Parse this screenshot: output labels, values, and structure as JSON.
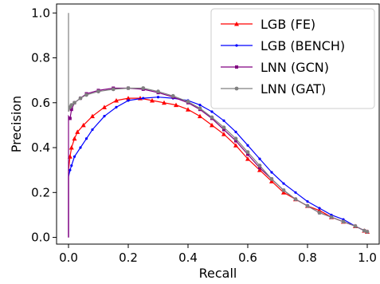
{
  "chart_data": {
    "type": "line",
    "title": "",
    "xlabel": "Recall",
    "ylabel": "Precision",
    "xlim": [
      -0.04,
      1.04
    ],
    "ylim": [
      -0.03,
      1.04
    ],
    "xticks": [
      0.0,
      0.2,
      0.4,
      0.6,
      0.8,
      1.0
    ],
    "yticks": [
      0.0,
      0.2,
      0.4,
      0.6,
      0.8,
      1.0
    ],
    "xtick_labels": [
      "0.0",
      "0.2",
      "0.4",
      "0.6",
      "0.8",
      "1.0"
    ],
    "ytick_labels": [
      "0.0",
      "0.2",
      "0.4",
      "0.6",
      "0.8",
      "1.0"
    ],
    "grid": false,
    "legend_position": "top-right",
    "series": [
      {
        "name": "LGB (FE)",
        "color": "#ff0000",
        "marker": "triangle",
        "x": [
          0.0,
          0.0,
          0.005,
          0.01,
          0.02,
          0.03,
          0.05,
          0.08,
          0.12,
          0.16,
          0.2,
          0.24,
          0.28,
          0.32,
          0.36,
          0.4,
          0.44,
          0.48,
          0.52,
          0.56,
          0.6,
          0.64,
          0.68,
          0.72,
          0.76,
          0.8,
          0.84,
          0.88,
          0.92,
          0.96,
          0.99,
          1.0
        ],
        "y": [
          0.0,
          0.3,
          0.36,
          0.4,
          0.44,
          0.47,
          0.5,
          0.54,
          0.58,
          0.61,
          0.62,
          0.62,
          0.61,
          0.6,
          0.59,
          0.57,
          0.54,
          0.5,
          0.46,
          0.41,
          0.35,
          0.3,
          0.25,
          0.2,
          0.17,
          0.14,
          0.12,
          0.09,
          0.07,
          0.05,
          0.03,
          0.025
        ]
      },
      {
        "name": "LGB (BENCH)",
        "color": "#0000ff",
        "marker": "point",
        "x": [
          0.0,
          0.0,
          0.005,
          0.01,
          0.02,
          0.04,
          0.06,
          0.08,
          0.12,
          0.16,
          0.2,
          0.25,
          0.3,
          0.35,
          0.4,
          0.44,
          0.48,
          0.52,
          0.56,
          0.6,
          0.64,
          0.68,
          0.72,
          0.76,
          0.8,
          0.84,
          0.88,
          0.92,
          0.96,
          0.99,
          1.0
        ],
        "y": [
          0.0,
          0.27,
          0.3,
          0.32,
          0.36,
          0.4,
          0.44,
          0.48,
          0.54,
          0.58,
          0.61,
          0.62,
          0.625,
          0.62,
          0.61,
          0.59,
          0.56,
          0.52,
          0.47,
          0.41,
          0.35,
          0.29,
          0.24,
          0.2,
          0.16,
          0.13,
          0.1,
          0.08,
          0.05,
          0.03,
          0.025
        ]
      },
      {
        "name": "LNN (GCN)",
        "color": "#800080",
        "marker": "square",
        "x": [
          0.0,
          0.0,
          0.005,
          0.01,
          0.02,
          0.04,
          0.06,
          0.1,
          0.15,
          0.2,
          0.25,
          0.3,
          0.35,
          0.4,
          0.44,
          0.48,
          0.52,
          0.56,
          0.6,
          0.64,
          0.68,
          0.72,
          0.76,
          0.8,
          0.84,
          0.88,
          0.92,
          0.96,
          0.99,
          1.0
        ],
        "y": [
          0.0,
          0.54,
          0.53,
          0.57,
          0.6,
          0.62,
          0.64,
          0.655,
          0.665,
          0.665,
          0.66,
          0.645,
          0.625,
          0.6,
          0.57,
          0.53,
          0.48,
          0.43,
          0.37,
          0.31,
          0.26,
          0.21,
          0.17,
          0.14,
          0.11,
          0.09,
          0.07,
          0.05,
          0.03,
          0.025
        ]
      },
      {
        "name": "LNN (GAT)",
        "color": "#808080",
        "marker": "circle",
        "x": [
          0.0,
          0.0,
          0.005,
          0.01,
          0.02,
          0.04,
          0.06,
          0.1,
          0.15,
          0.2,
          0.25,
          0.3,
          0.35,
          0.4,
          0.44,
          0.48,
          0.52,
          0.56,
          0.6,
          0.64,
          0.68,
          0.72,
          0.76,
          0.8,
          0.84,
          0.88,
          0.92,
          0.96,
          0.99,
          1.0
        ],
        "y": [
          1.0,
          0.56,
          0.58,
          0.59,
          0.6,
          0.62,
          0.635,
          0.65,
          0.66,
          0.665,
          0.665,
          0.65,
          0.63,
          0.605,
          0.575,
          0.535,
          0.49,
          0.44,
          0.38,
          0.32,
          0.26,
          0.21,
          0.17,
          0.14,
          0.11,
          0.09,
          0.07,
          0.05,
          0.03,
          0.025
        ]
      }
    ]
  }
}
